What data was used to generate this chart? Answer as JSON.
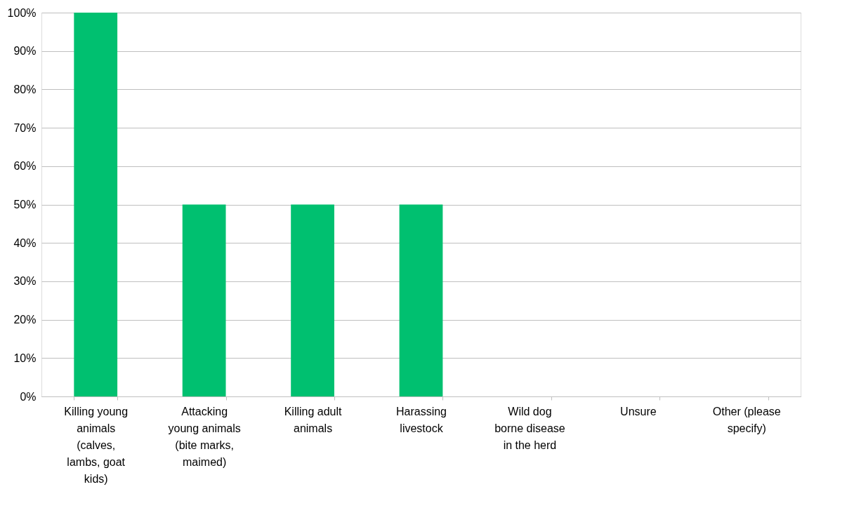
{
  "chart_data": {
    "type": "bar",
    "categories": [
      "Killing young animals (calves, lambs, goat kids)",
      "Attacking young animals (bite marks, maimed)",
      "Killing adult animals",
      "Harassing livestock",
      "Wild dog borne disease in the herd",
      "Unsure",
      "Other (please specify)"
    ],
    "values": [
      100,
      50,
      50,
      50,
      0,
      0,
      0
    ],
    "color": "#00c070",
    "ylim": [
      0,
      100
    ],
    "yticks": [
      {
        "value": 0,
        "label": "0%"
      },
      {
        "value": 10,
        "label": "10%"
      },
      {
        "value": 20,
        "label": "20%"
      },
      {
        "value": 30,
        "label": "30%"
      },
      {
        "value": 40,
        "label": "40%"
      },
      {
        "value": 50,
        "label": "50%"
      },
      {
        "value": 60,
        "label": "60%"
      },
      {
        "value": 70,
        "label": "70%"
      },
      {
        "value": 80,
        "label": "80%"
      },
      {
        "value": 90,
        "label": "90%"
      },
      {
        "value": 100,
        "label": "100%"
      }
    ],
    "grid": "y"
  }
}
